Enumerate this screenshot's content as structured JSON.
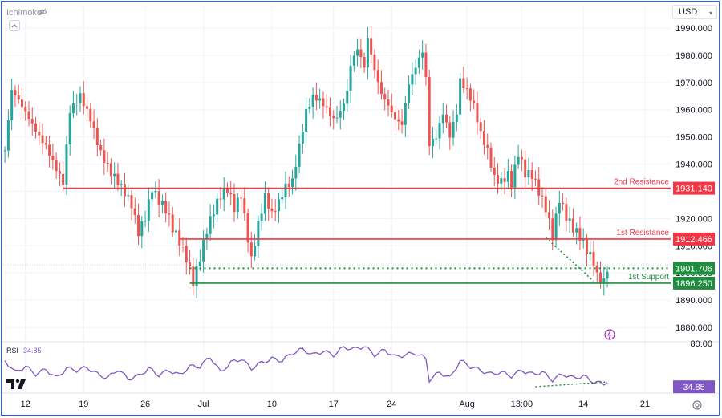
{
  "header": {
    "indicator_label": "Ichimoku",
    "currency": "USD"
  },
  "rsi": {
    "label": "RSI",
    "value": "34.85",
    "axis_label": "80.00"
  },
  "colors": {
    "up": "#26a69a",
    "down": "#ef5350",
    "resistance": "#f23645",
    "support": "#1e8e3e",
    "rsi": "#7e57c2",
    "grid": "#f0f3fa",
    "current_price_line": "#26a69a"
  },
  "chart_data": {
    "type": "candlestick",
    "price_axis": {
      "ticks": [
        1990,
        1980,
        1970,
        1960,
        1950,
        1940,
        1930,
        1920,
        1910,
        1900,
        1890,
        1880
      ],
      "tick_labels": [
        "1990.000",
        "1980.000",
        "1970.000",
        "1960.000",
        "1950.000",
        "1940.000",
        "1930.000",
        "1920.000",
        "1910.000",
        "1900.000",
        "1890.000",
        "1880.000"
      ],
      "ylim": [
        1875,
        1995
      ]
    },
    "x_axis": {
      "ticks": [
        {
          "label": "12",
          "bar": 6
        },
        {
          "label": "19",
          "bar": 23
        },
        {
          "label": "26",
          "bar": 41
        },
        {
          "label": "Jul",
          "bar": 58
        },
        {
          "label": "10",
          "bar": 78
        },
        {
          "label": "17",
          "bar": 96
        },
        {
          "label": "24",
          "bar": 113
        },
        {
          "label": "Aug",
          "bar": 135
        },
        {
          "label": "13:00",
          "bar": 151
        },
        {
          "label": "14",
          "bar": 169
        },
        {
          "label": "21",
          "bar": 187
        }
      ],
      "bar_count": 195
    },
    "levels": [
      {
        "name": "2nd Resistance",
        "value": 1931.14,
        "label": "1931.140",
        "kind": "resistance",
        "start_bar": 17
      },
      {
        "name": "1st Resistance",
        "value": 1912.466,
        "label": "1912.466",
        "kind": "resistance",
        "start_bar": 51
      },
      {
        "name": "1st Support",
        "value": 1896.25,
        "label": "1896.250",
        "kind": "support",
        "start_bar": 54
      }
    ],
    "current_price": {
      "value": 1901.706,
      "label": "1901.706"
    },
    "price_anchors": [
      [
        0,
        1945
      ],
      [
        2,
        1966
      ],
      [
        5,
        1960
      ],
      [
        8,
        1955
      ],
      [
        12,
        1948
      ],
      [
        15,
        1938
      ],
      [
        17,
        1932
      ],
      [
        19,
        1958
      ],
      [
        22,
        1965
      ],
      [
        25,
        1958
      ],
      [
        28,
        1945
      ],
      [
        31,
        1936
      ],
      [
        34,
        1930
      ],
      [
        37,
        1925
      ],
      [
        39,
        1916
      ],
      [
        41,
        1922
      ],
      [
        43,
        1932
      ],
      [
        45,
        1926
      ],
      [
        47,
        1922
      ],
      [
        49,
        1915
      ],
      [
        51,
        1911
      ],
      [
        53,
        1906
      ],
      [
        55,
        1898
      ],
      [
        57,
        1907
      ],
      [
        59,
        1916
      ],
      [
        61,
        1922
      ],
      [
        63,
        1927
      ],
      [
        65,
        1930
      ],
      [
        67,
        1924
      ],
      [
        69,
        1930
      ],
      [
        71,
        1914
      ],
      [
        72,
        1906
      ],
      [
        74,
        1918
      ],
      [
        76,
        1927
      ],
      [
        78,
        1920
      ],
      [
        80,
        1925
      ],
      [
        82,
        1932
      ],
      [
        84,
        1935
      ],
      [
        86,
        1948
      ],
      [
        88,
        1960
      ],
      [
        90,
        1964
      ],
      [
        92,
        1962
      ],
      [
        94,
        1959
      ],
      [
        96,
        1956
      ],
      [
        98,
        1960
      ],
      [
        100,
        1968
      ],
      [
        101,
        1978
      ],
      [
        103,
        1983
      ],
      [
        105,
        1975
      ],
      [
        106,
        1985
      ],
      [
        108,
        1973
      ],
      [
        110,
        1965
      ],
      [
        112,
        1962
      ],
      [
        114,
        1958
      ],
      [
        116,
        1956
      ],
      [
        118,
        1970
      ],
      [
        120,
        1975
      ],
      [
        122,
        1980
      ],
      [
        123,
        1970
      ],
      [
        124,
        1946
      ],
      [
        126,
        1950
      ],
      [
        128,
        1960
      ],
      [
        130,
        1952
      ],
      [
        132,
        1960
      ],
      [
        133,
        1971
      ],
      [
        135,
        1966
      ],
      [
        137,
        1960
      ],
      [
        139,
        1950
      ],
      [
        141,
        1945
      ],
      [
        143,
        1936
      ],
      [
        145,
        1935
      ],
      [
        147,
        1937
      ],
      [
        148,
        1933
      ],
      [
        150,
        1943
      ],
      [
        152,
        1935
      ],
      [
        154,
        1935
      ],
      [
        156,
        1930
      ],
      [
        158,
        1925
      ],
      [
        160,
        1915
      ],
      [
        162,
        1928
      ],
      [
        164,
        1920
      ],
      [
        166,
        1915
      ],
      [
        168,
        1912
      ],
      [
        170,
        1908
      ],
      [
        172,
        1905
      ],
      [
        173,
        1900
      ],
      [
        175,
        1898
      ],
      [
        176,
        1903
      ]
    ],
    "rsi": {
      "levels": [
        80
      ],
      "anchors": [
        [
          0,
          62
        ],
        [
          3,
          50
        ],
        [
          6,
          56
        ],
        [
          9,
          48
        ],
        [
          12,
          53
        ],
        [
          15,
          44
        ],
        [
          18,
          54
        ],
        [
          21,
          52
        ],
        [
          24,
          55
        ],
        [
          27,
          48
        ],
        [
          30,
          44
        ],
        [
          33,
          53
        ],
        [
          36,
          43
        ],
        [
          39,
          46
        ],
        [
          42,
          54
        ],
        [
          45,
          47
        ],
        [
          48,
          52
        ],
        [
          51,
          47
        ],
        [
          54,
          56
        ],
        [
          57,
          56
        ],
        [
          60,
          66
        ],
        [
          63,
          50
        ],
        [
          66,
          60
        ],
        [
          69,
          64
        ],
        [
          72,
          54
        ],
        [
          75,
          60
        ],
        [
          78,
          64
        ],
        [
          81,
          62
        ],
        [
          84,
          70
        ],
        [
          87,
          74
        ],
        [
          90,
          68
        ],
        [
          93,
          72
        ],
        [
          96,
          68
        ],
        [
          99,
          76
        ],
        [
          102,
          74
        ],
        [
          105,
          77
        ],
        [
          108,
          68
        ],
        [
          111,
          73
        ],
        [
          114,
          66
        ],
        [
          117,
          68
        ],
        [
          120,
          70
        ],
        [
          123,
          64
        ],
        [
          124,
          42
        ],
        [
          127,
          50
        ],
        [
          130,
          44
        ],
        [
          133,
          62
        ],
        [
          136,
          56
        ],
        [
          139,
          52
        ],
        [
          142,
          48
        ],
        [
          145,
          50
        ],
        [
          148,
          46
        ],
        [
          151,
          52
        ],
        [
          154,
          48
        ],
        [
          157,
          50
        ],
        [
          160,
          42
        ],
        [
          163,
          48
        ],
        [
          166,
          44
        ],
        [
          169,
          46
        ],
        [
          172,
          40
        ],
        [
          175,
          38
        ],
        [
          176,
          41
        ]
      ]
    }
  }
}
